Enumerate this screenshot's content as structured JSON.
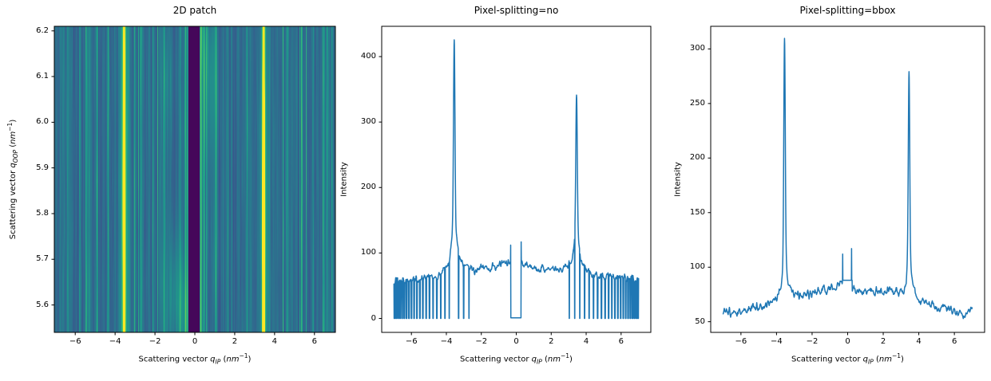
{
  "figure": {
    "background": "#ffffff",
    "text_color": "#000000",
    "spine_color": "#000000"
  },
  "labels": {
    "scattering_x": {
      "prefix": "Scattering vector ",
      "sym": "q",
      "sub": "IP",
      "open": " (",
      "unit": "nm",
      "exp": "−1",
      "close": ")"
    },
    "scattering_y": {
      "prefix": "Scattering vector ",
      "sym": "q",
      "sub": "OOP",
      "open": " (",
      "unit": "nm",
      "exp": "−1",
      "close": ")"
    },
    "intensity": "Intensity"
  },
  "chart_data": [
    {
      "type": "heatmap",
      "title": "2D patch",
      "xlabel": "Scattering vector q_IP (nm^-1)",
      "ylabel": "Scattering vector q_OOP (nm^-1)",
      "xlim": [
        -7.05,
        7.05
      ],
      "ylim": [
        5.54,
        6.21
      ],
      "xtick_values": [
        -6,
        -4,
        -2,
        0,
        2,
        4,
        6
      ],
      "xtick_labels": [
        "−6",
        "−4",
        "−2",
        "0",
        "2",
        "4",
        "6"
      ],
      "ytick_values": [
        5.6,
        5.7,
        5.8,
        5.9,
        6.0,
        6.1,
        6.2
      ],
      "ytick_labels": [
        "5.6",
        "5.7",
        "5.8",
        "5.9",
        "6.0",
        "6.1",
        "6.2"
      ],
      "colormap": "viridis",
      "colormap_stops": [
        "#440154",
        "#482878",
        "#3e4989",
        "#31688e",
        "#26828e",
        "#1f9e89",
        "#35b779",
        "#6ece58",
        "#fde725"
      ],
      "content": {
        "background_level": 0.4,
        "streak_noise_amplitude": 0.09,
        "vertical_modulation": 0.1,
        "bright_columns": [
          {
            "q": -0.48,
            "level": 0.3
          },
          {
            "q": 0.28,
            "level": 0.33
          },
          {
            "q": 0.46,
            "level": 0.22
          },
          {
            "q": -2.72,
            "level": 0.2
          },
          {
            "q": 1.05,
            "level": 0.22
          },
          {
            "q": -5.32,
            "level": 0.18
          },
          {
            "q": 5.92,
            "level": 0.16
          },
          {
            "q": -1.55,
            "level": 0.18
          },
          {
            "q": 4.62,
            "level": 0.16
          },
          {
            "q": -6.42,
            "level": 0.16
          },
          {
            "q": 2.62,
            "level": 0.17
          },
          {
            "q": 6.62,
            "level": 0.16
          },
          {
            "q": -4.35,
            "level": 0.15
          },
          {
            "q": 1.85,
            "level": 0.15
          }
        ],
        "rods": [
          {
            "q": -3.55,
            "peak_level": 0.74,
            "sigma_q": 0.055,
            "halo_level": 0.24,
            "halo_sigma_q": 0.17,
            "y_center": 5.8,
            "y_sigma": 0.3
          },
          {
            "q": 3.45,
            "peak_level": 0.74,
            "sigma_q": 0.055,
            "halo_level": 0.24,
            "halo_sigma_q": 0.17,
            "y_center": 5.78,
            "y_sigma": 0.3
          }
        ],
        "beamstop": {
          "q_from": -0.35,
          "q_to": 0.22,
          "level": 0.02
        },
        "blobs": [
          {
            "q": 0.85,
            "y": 6.02,
            "rq": 0.35,
            "ry": 0.09,
            "amount": 0.13
          },
          {
            "q": -0.95,
            "y": 5.66,
            "rq": 0.3,
            "ry": 0.08,
            "amount": 0.12
          },
          {
            "q": 0.6,
            "y": 6.17,
            "rq": 0.4,
            "ry": 0.07,
            "amount": 0.12
          },
          {
            "q": -0.6,
            "y": 5.58,
            "rq": 0.5,
            "ry": 0.07,
            "amount": 0.12
          },
          {
            "q": -1.3,
            "y": 6.1,
            "rq": 0.25,
            "ry": 0.07,
            "amount": 0.08
          },
          {
            "q": 1.15,
            "y": 5.74,
            "rq": 0.3,
            "ry": 0.09,
            "amount": 0.08
          }
        ]
      }
    },
    {
      "type": "line",
      "title": "Pixel-splitting=no",
      "xlabel": "Scattering vector q_IP (nm^-1)",
      "ylabel": "Intensity",
      "xlim": [
        -7.7,
        7.7
      ],
      "ylim": [
        -21.25,
        446.25
      ],
      "xtick_values": [
        -6,
        -4,
        -2,
        0,
        2,
        4,
        6
      ],
      "xtick_labels": [
        "−6",
        "−4",
        "−2",
        "0",
        "2",
        "4",
        "6"
      ],
      "ytick_values": [
        0,
        100,
        200,
        300,
        400
      ],
      "ytick_labels": [
        "0",
        "100",
        "200",
        "300",
        "400"
      ],
      "line_color": "#1f77b4",
      "line_width": 1.5,
      "series": [
        {
          "name": "Intensity",
          "x_range": [
            -7,
            7
          ],
          "baseline_points": [
            [
              -7,
              58
            ],
            [
              -6,
              60
            ],
            [
              -5,
              62
            ],
            [
              -4,
              66
            ],
            [
              -3.2,
              71
            ],
            [
              -2.5,
              72
            ],
            [
              -2,
              76
            ],
            [
              -1,
              80
            ],
            [
              -0.5,
              84
            ],
            [
              0.4,
              81
            ],
            [
              1,
              79
            ],
            [
              2,
              75
            ],
            [
              2.8,
              72
            ],
            [
              3.2,
              70
            ],
            [
              4,
              66
            ],
            [
              5,
              64
            ],
            [
              6,
              62
            ],
            [
              7,
              60
            ]
          ],
          "noise": {
            "coarse_step": 0.06,
            "coarse_amp": 5.5,
            "fine_step": 0.025,
            "fine_amp": 2.5
          },
          "peaks": [
            {
              "x": -3.55,
              "top": 428,
              "sigma": 0.04,
              "mid_height": 60,
              "mid_sigma": 0.12,
              "broad_height": 25,
              "broad_sigma": 0.4
            },
            {
              "x": 3.45,
              "top": 343,
              "sigma": 0.04,
              "mid_height": 50,
              "mid_sigma": 0.12,
              "broad_height": 20,
              "broad_sigma": 0.4
            }
          ],
          "beamstop_gap": {
            "from": -0.33,
            "to": 0.28,
            "floor": 1,
            "left_wall_top": 112,
            "right_wall_top": 117
          },
          "dropout_regions": [
            {
              "from": -7,
              "to": -2.5,
              "dense_at": "from",
              "spacing_min": 0.1,
              "spacing_max": 0.33,
              "width_max": 0.05,
              "width_min": 0.02,
              "floor": 0
            },
            {
              "from": 2.97,
              "to": 7,
              "dense_at": "to",
              "spacing_min": 0.1,
              "spacing_max": 0.33,
              "width_max": 0.05,
              "width_min": 0.02,
              "floor": 0
            }
          ]
        }
      ]
    },
    {
      "type": "line",
      "title": "Pixel-splitting=bbox",
      "xlabel": "Scattering vector q_IP (nm^-1)",
      "ylabel": "Intensity",
      "xlim": [
        -7.7,
        7.7
      ],
      "ylim": [
        40.25,
        320.75
      ],
      "xtick_values": [
        -6,
        -4,
        -2,
        0,
        2,
        4,
        6
      ],
      "xtick_labels": [
        "−6",
        "−4",
        "−2",
        "0",
        "2",
        "4",
        "6"
      ],
      "ytick_values": [
        50,
        100,
        150,
        200,
        250,
        300
      ],
      "ytick_labels": [
        "50",
        "100",
        "150",
        "200",
        "250",
        "300"
      ],
      "line_color": "#1f77b4",
      "line_width": 1.5,
      "series": [
        {
          "name": "Intensity",
          "x_range": [
            -7,
            7
          ],
          "baseline_points": [
            [
              -7,
              59
            ],
            [
              -6,
              60
            ],
            [
              -5,
              63
            ],
            [
              -4,
              68
            ],
            [
              -3.2,
              73
            ],
            [
              -2.5,
              75
            ],
            [
              -2,
              76
            ],
            [
              -1,
              80
            ],
            [
              -0.5,
              85
            ],
            [
              0.4,
              80
            ],
            [
              1,
              78
            ],
            [
              2,
              76
            ],
            [
              2.6,
              78
            ],
            [
              3.2,
              73
            ],
            [
              4,
              70
            ],
            [
              5,
              65
            ],
            [
              6,
              60
            ],
            [
              6.5,
              56
            ],
            [
              7,
              60
            ]
          ],
          "noise": {
            "coarse_step": 0.07,
            "coarse_amp": 3.8,
            "fine_step": 0.03,
            "fine_amp": 1.8
          },
          "peaks": [
            {
              "x": -3.55,
              "top": 308,
              "sigma": 0.04,
              "mid_height": 30,
              "mid_sigma": 0.1,
              "broad_height": 12,
              "broad_sigma": 0.3
            },
            {
              "x": 3.45,
              "top": 279,
              "sigma": 0.04,
              "mid_height": 25,
              "mid_sigma": 0.1,
              "broad_height": 10,
              "broad_sigma": 0.3
            }
          ],
          "beamstop_plateau": {
            "from": -0.3,
            "to": 0.25,
            "level": 88,
            "left_spike": {
              "x": -0.28,
              "top": 112
            },
            "right_spike": {
              "x": 0.22,
              "top": 117
            }
          }
        }
      ]
    }
  ]
}
